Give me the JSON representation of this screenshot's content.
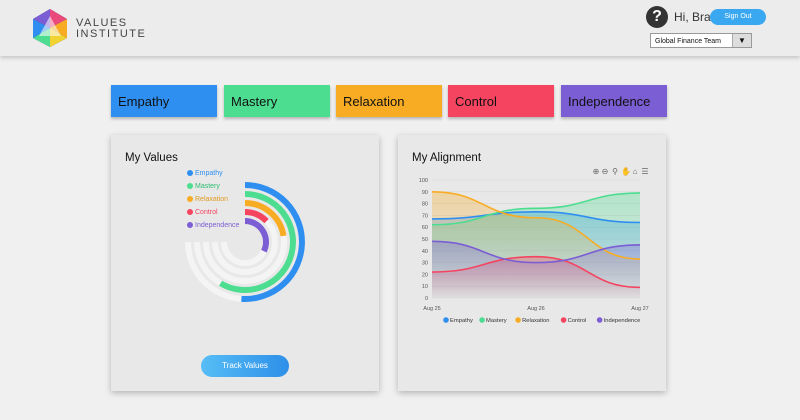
{
  "brand": {
    "line1": "VALUES",
    "line2": "INSTITUTE"
  },
  "user": {
    "greeting": "Hi, Brad",
    "signout": "Sign Out"
  },
  "team": {
    "selected": "Global Finance Team"
  },
  "values": [
    {
      "label": "Empathy",
      "color": "#2f8ff0"
    },
    {
      "label": "Mastery",
      "color": "#4ddd90"
    },
    {
      "label": "Relaxation",
      "color": "#f8ac24"
    },
    {
      "label": "Control",
      "color": "#f54460"
    },
    {
      "label": "Independence",
      "color": "#7b5dd4"
    }
  ],
  "my_values": {
    "title": "My Values",
    "button": "Track Values",
    "legend": [
      {
        "label": "Empathy",
        "color": "#2f8ff0"
      },
      {
        "label": "Mastery",
        "color": "#4ddd90"
      },
      {
        "label": "Relaxation",
        "color": "#f8ac24"
      },
      {
        "label": "Control",
        "color": "#f54460"
      },
      {
        "label": "Independence",
        "color": "#7b5dd4"
      }
    ]
  },
  "my_alignment": {
    "title": "My Alignment",
    "toolbar_icons": [
      "zoom-in-icon",
      "zoom-out-icon",
      "magnifier-icon",
      "pan-icon",
      "home-icon",
      "menu-icon"
    ]
  },
  "chart_data": [
    {
      "type": "radialBar",
      "series": [
        {
          "name": "Empathy",
          "value": 68,
          "color": "#2f8ff0"
        },
        {
          "name": "Mastery",
          "value": 78,
          "color": "#4ddd90"
        },
        {
          "name": "Relaxation",
          "value": 30,
          "color": "#f8ac24"
        },
        {
          "name": "Control",
          "value": 17,
          "color": "#f54460"
        },
        {
          "name": "Independence",
          "value": 43,
          "color": "#7b5dd4"
        }
      ],
      "ylim": [
        0,
        100
      ]
    },
    {
      "type": "area",
      "x": [
        "Aug 25",
        "Aug 26",
        "Aug 27"
      ],
      "ylim": [
        0,
        100
      ],
      "yticks": [
        0,
        10,
        20,
        30,
        40,
        50,
        60,
        70,
        80,
        90,
        100
      ],
      "series": [
        {
          "name": "Empathy",
          "color": "#2f8ff0",
          "values": [
            67,
            73,
            64
          ]
        },
        {
          "name": "Mastery",
          "color": "#4ddd90",
          "values": [
            62,
            76,
            89
          ]
        },
        {
          "name": "Relaxation",
          "color": "#f8ac24",
          "values": [
            90,
            68,
            33
          ]
        },
        {
          "name": "Control",
          "color": "#f54460",
          "values": [
            22,
            35,
            9
          ]
        },
        {
          "name": "Independence",
          "color": "#7b5dd4",
          "values": [
            48,
            30,
            45
          ]
        }
      ]
    }
  ]
}
